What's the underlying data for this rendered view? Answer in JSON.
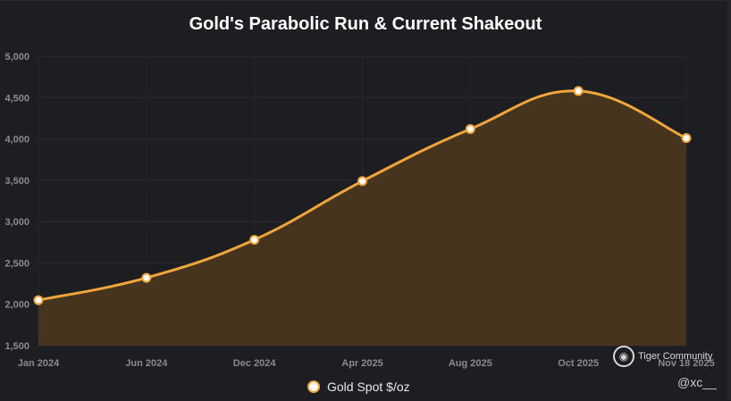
{
  "chart_data": {
    "type": "area",
    "title": "Gold's Parabolic Run & Current Shakeout",
    "xlabel": "",
    "ylabel": "",
    "categories": [
      "Jan 2024",
      "Jun 2024",
      "Dec 2024",
      "Apr 2025",
      "Aug 2025",
      "Oct 2025",
      "Nov 18 2025"
    ],
    "series": [
      {
        "name": "Gold Spot $/oz",
        "values": [
          2050,
          2320,
          2780,
          3490,
          4120,
          4580,
          4010
        ]
      }
    ],
    "ylim": [
      1500,
      5000
    ],
    "yticks": [
      1500,
      2000,
      2500,
      3000,
      3500,
      4000,
      4500,
      5000
    ],
    "ytick_labels": [
      "1,500",
      "2,000",
      "2,500",
      "3,000",
      "3,500",
      "4,000",
      "4,500",
      "5,000"
    ],
    "grid": true,
    "legend": "bottom-center",
    "colors": {
      "line": "#f0a63c",
      "fill": "#4a3620",
      "point": "#ffffff"
    }
  },
  "watermark": {
    "brand": "Tiger Community",
    "icon": "tiger-logo-icon",
    "handle": "@xc__"
  }
}
